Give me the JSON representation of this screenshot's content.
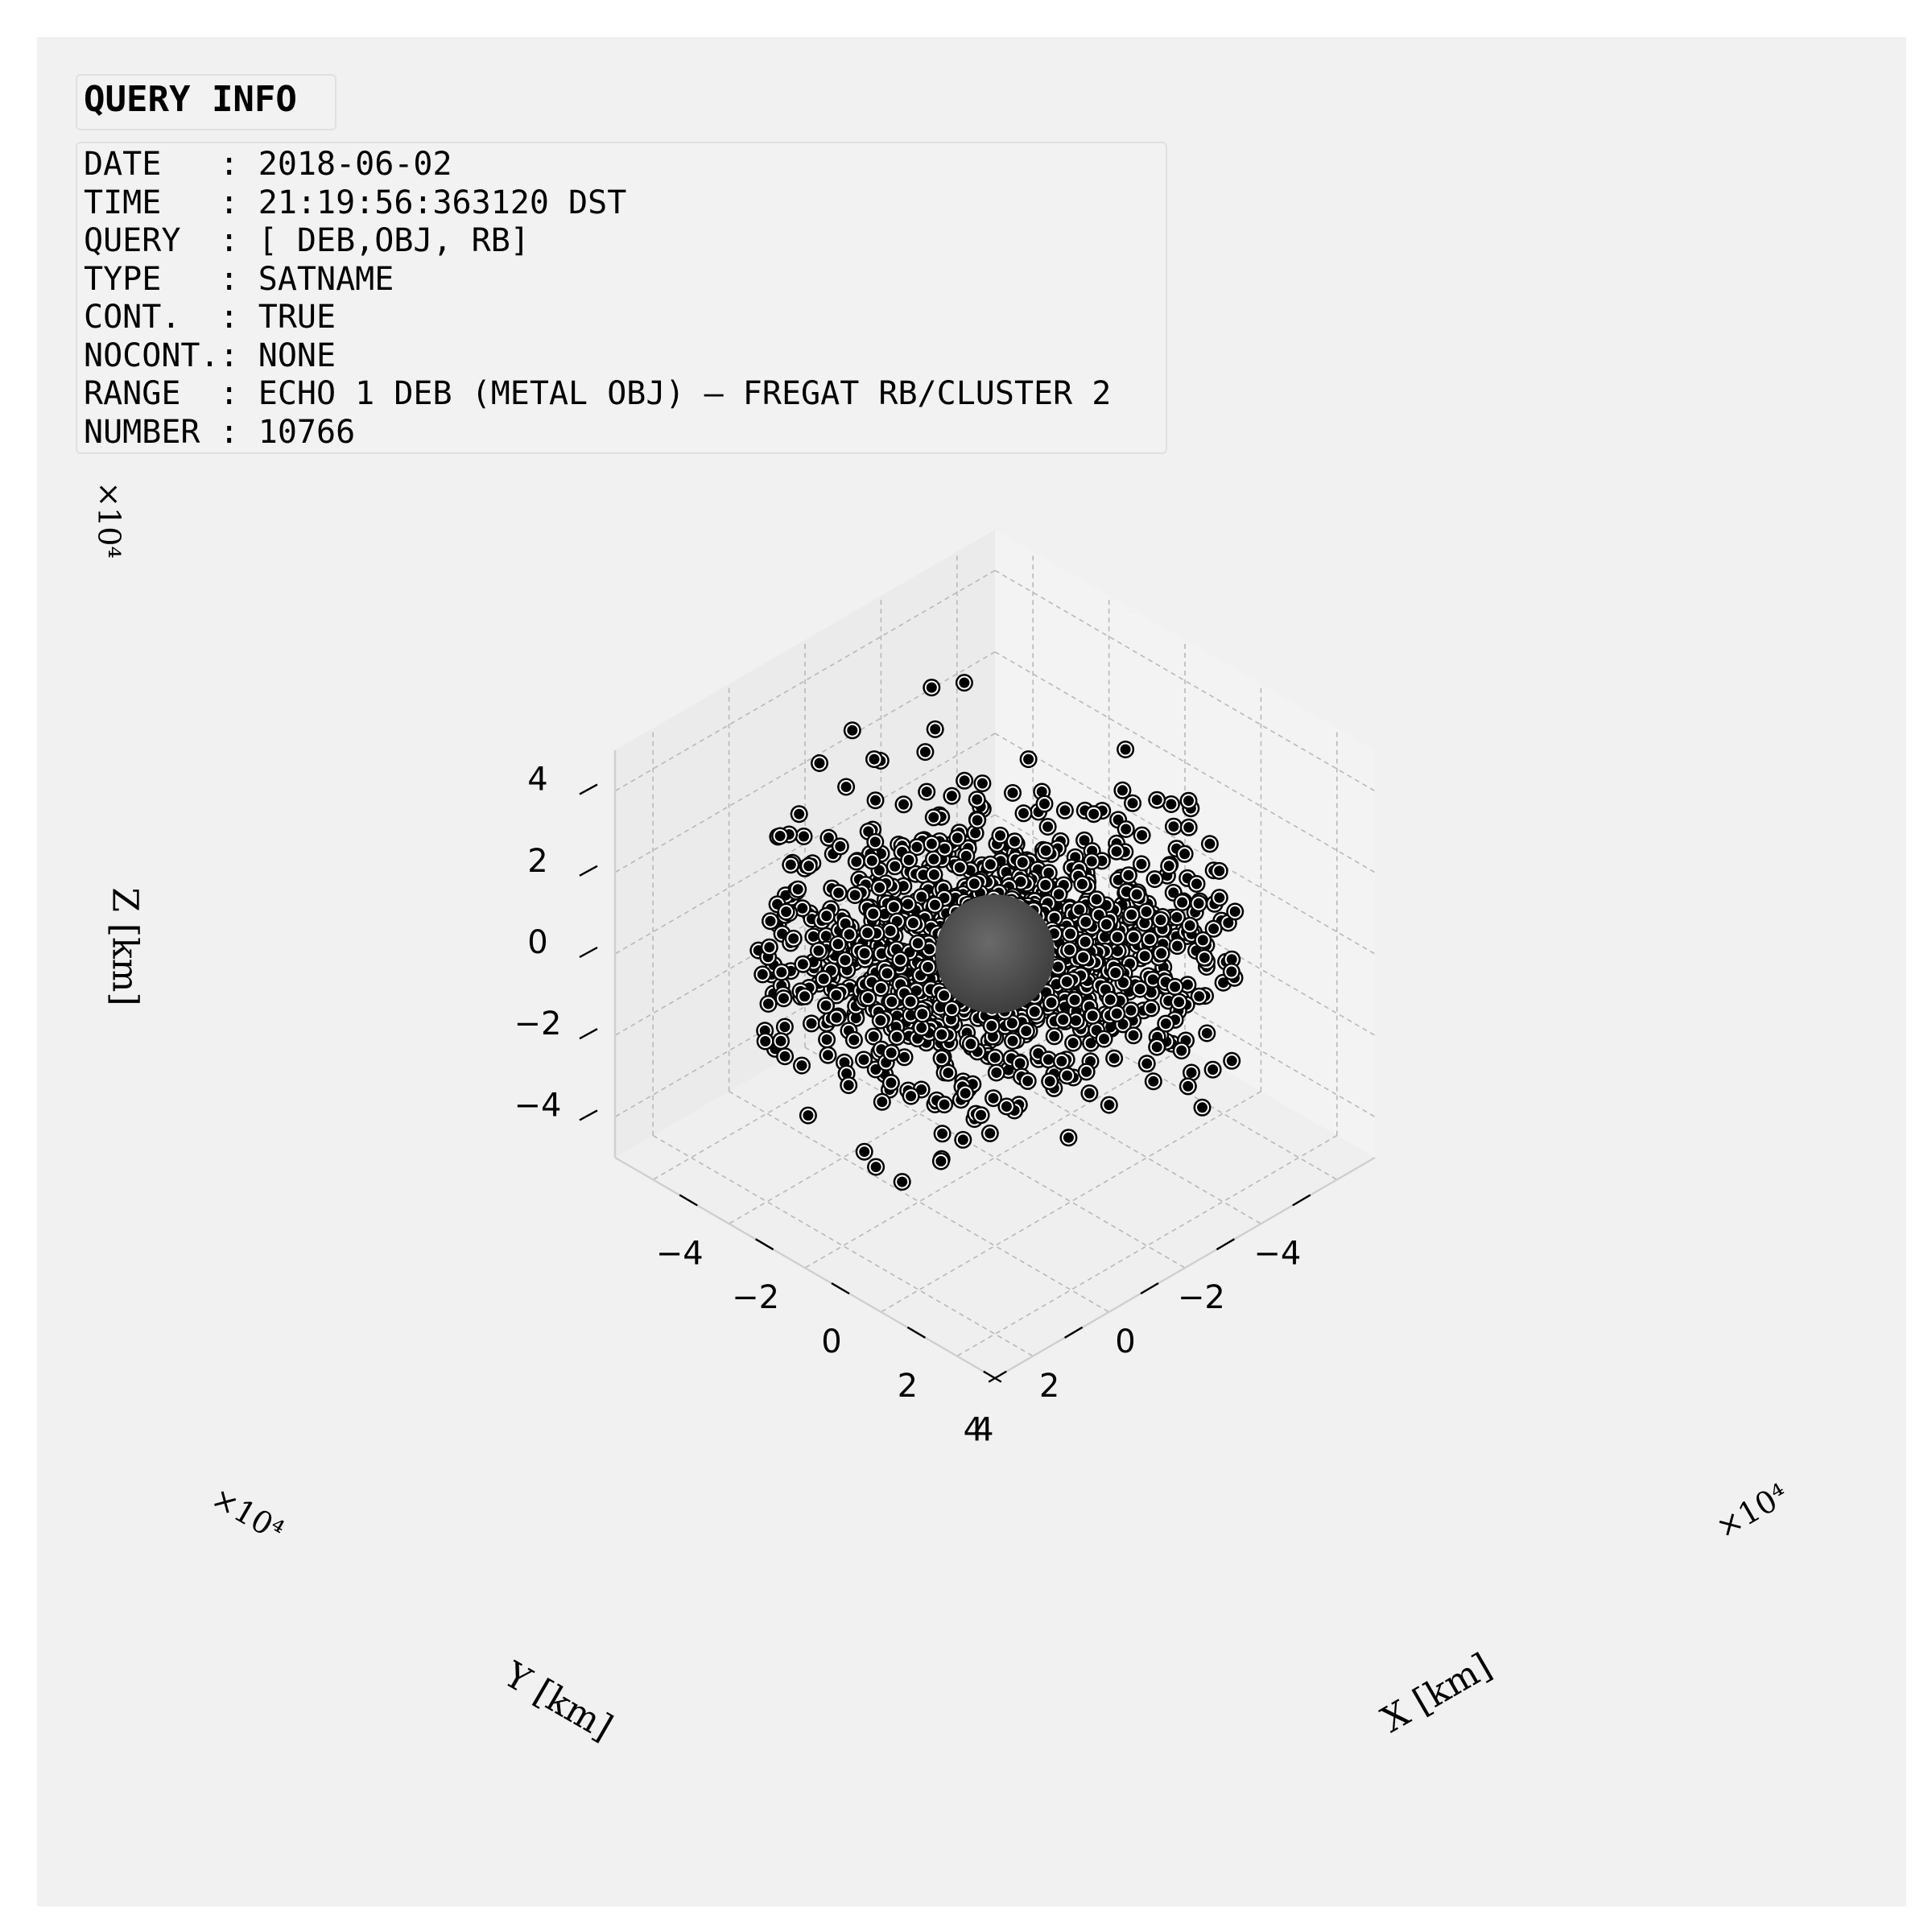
{
  "colors": {
    "figure_bg": "#f1f1f1",
    "pane_left": "#ebebeb",
    "pane_right": "#f3f3f3",
    "pane_floor": "#efefef",
    "grid": "#b8b8b8",
    "marker_fill": "#000000",
    "marker_edge": "#000000",
    "marker_ring": "#ffffff",
    "earth": "#555555"
  },
  "info": {
    "title": "QUERY INFO",
    "lines": [
      "DATE   : 2018-06-02",
      "TIME   : 21:19:56:363120 DST",
      "QUERY  : [ DEB,OBJ, RB]",
      "TYPE   : SATNAME",
      "CONT.  : TRUE",
      "NOCONT.: NONE",
      "RANGE  : ECHO 1 DEB (METAL OBJ) – FREGAT RB/CLUSTER 2",
      "NUMBER : 10766"
    ]
  },
  "chart_data": {
    "type": "scatter",
    "projection": "3d",
    "title": "",
    "xlabel": "X [km]",
    "ylabel": "Y [km]",
    "zlabel": "Z [km]",
    "x_multiplier": "×10⁴",
    "y_multiplier": "×10⁴",
    "z_multiplier": "×10⁴",
    "xlim": [
      -5,
      5
    ],
    "ylim": [
      -5,
      5
    ],
    "zlim": [
      -5,
      5
    ],
    "x_ticks": [
      -4,
      -2,
      0,
      2,
      4
    ],
    "y_ticks": [
      -4,
      -2,
      0,
      2,
      4
    ],
    "z_ticks": [
      -4,
      -2,
      0,
      2,
      4
    ],
    "x_tick_labels": [
      "−4",
      "−2",
      "0",
      "2",
      "4"
    ],
    "y_tick_labels": [
      "−4",
      "−2",
      "0",
      "2",
      "4"
    ],
    "z_tick_labels": [
      "−4",
      "−2",
      "0",
      "2",
      "4"
    ],
    "grid": true,
    "central_body": "earth sphere at origin, radius 0.6378 ×10⁴ km",
    "point_count_shown": 10766,
    "points_note": "dense cloud near origin with sparse outliers out to about ±4.5 ×10⁴ km"
  }
}
